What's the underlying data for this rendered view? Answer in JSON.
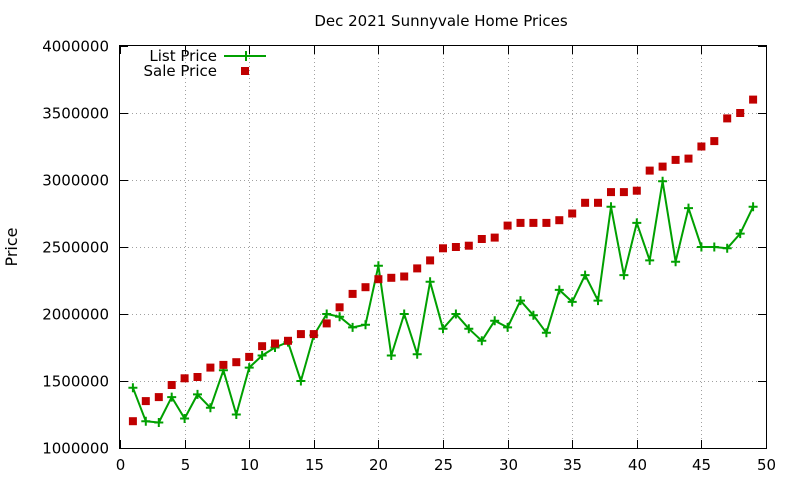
{
  "chart_data": {
    "type": "line",
    "title": "Dec 2021 Sunnyvale Home Prices",
    "xlabel": "",
    "ylabel": "Price",
    "xlim": [
      0,
      50
    ],
    "ylim": [
      1000000,
      4000000
    ],
    "xticks": [
      0,
      5,
      10,
      15,
      20,
      25,
      30,
      35,
      40,
      45,
      50
    ],
    "yticks": [
      1000000,
      1500000,
      2000000,
      2500000,
      3000000,
      3500000,
      4000000
    ],
    "x_tick_labels": [
      "0",
      "5",
      "10",
      "15",
      "20",
      "25",
      "30",
      "35",
      "40",
      "45",
      "50"
    ],
    "y_tick_labels": [
      "1000000",
      "1500000",
      "2000000",
      "2500000",
      "3000000",
      "3500000",
      "4000000"
    ],
    "grid": true,
    "legend_position": "top-left",
    "series": [
      {
        "name": "List Price",
        "style": "linespoints",
        "marker": "plus",
        "color": "#00a000",
        "x": [
          1,
          2,
          3,
          4,
          5,
          6,
          7,
          8,
          9,
          10,
          11,
          12,
          13,
          14,
          15,
          16,
          17,
          18,
          19,
          20,
          21,
          22,
          23,
          24,
          25,
          26,
          27,
          28,
          29,
          30,
          31,
          32,
          33,
          34,
          35,
          36,
          37,
          38,
          39,
          40,
          41,
          42,
          43,
          44,
          45,
          46,
          47,
          48,
          49
        ],
        "values": [
          1450000,
          1200000,
          1190000,
          1380000,
          1220000,
          1400000,
          1300000,
          1580000,
          1250000,
          1600000,
          1690000,
          1750000,
          1790000,
          1500000,
          1840000,
          2000000,
          1980000,
          1900000,
          1920000,
          2360000,
          1690000,
          2000000,
          1700000,
          2240000,
          1890000,
          2000000,
          1890000,
          1800000,
          1950000,
          1900000,
          2100000,
          1990000,
          1860000,
          2180000,
          2090000,
          2290000,
          2100000,
          2800000,
          2290000,
          2680000,
          2400000,
          2990000,
          2390000,
          2790000,
          2500000,
          2500000,
          2490000,
          2600000,
          2800000
        ]
      },
      {
        "name": "Sale Price",
        "style": "points",
        "marker": "square",
        "color": "#c00000",
        "x": [
          1,
          2,
          3,
          4,
          5,
          6,
          7,
          8,
          9,
          10,
          11,
          12,
          13,
          14,
          15,
          16,
          17,
          18,
          19,
          20,
          21,
          22,
          23,
          24,
          25,
          26,
          27,
          28,
          29,
          30,
          31,
          32,
          33,
          34,
          35,
          36,
          37,
          38,
          39,
          40,
          41,
          42,
          43,
          44,
          45,
          46,
          47,
          48,
          49
        ],
        "values": [
          1200000,
          1350000,
          1380000,
          1470000,
          1520000,
          1530000,
          1600000,
          1620000,
          1640000,
          1680000,
          1760000,
          1780000,
          1800000,
          1850000,
          1850000,
          1930000,
          2050000,
          2150000,
          2200000,
          2260000,
          2270000,
          2280000,
          2340000,
          2400000,
          2490000,
          2500000,
          2510000,
          2560000,
          2570000,
          2660000,
          2680000,
          2680000,
          2680000,
          2700000,
          2750000,
          2830000,
          2830000,
          2910000,
          2910000,
          2920000,
          3070000,
          3100000,
          3150000,
          3160000,
          3250000,
          3290000,
          3460000,
          3500000,
          3600000
        ]
      }
    ]
  }
}
